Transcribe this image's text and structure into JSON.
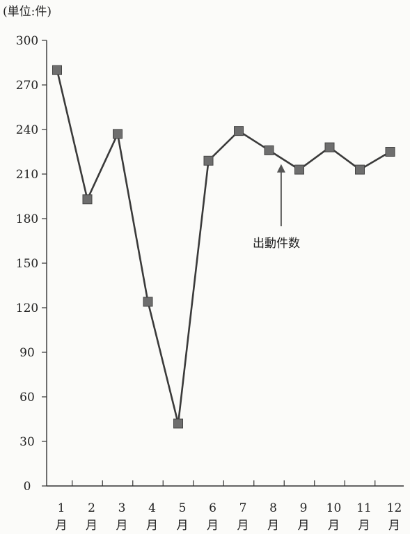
{
  "chart_data": {
    "type": "line",
    "unit_label": "(単位:件)",
    "y_ticks": [
      "0",
      "30",
      "60",
      "90",
      "120",
      "150",
      "180",
      "210",
      "240",
      "270",
      "300"
    ],
    "ylim": [
      0,
      300
    ],
    "categories": [
      {
        "num": "1",
        "suffix": "月"
      },
      {
        "num": "2",
        "suffix": "月"
      },
      {
        "num": "3",
        "suffix": "月"
      },
      {
        "num": "4",
        "suffix": "月"
      },
      {
        "num": "5",
        "suffix": "月"
      },
      {
        "num": "6",
        "suffix": "月"
      },
      {
        "num": "7",
        "suffix": "月"
      },
      {
        "num": "8",
        "suffix": "月"
      },
      {
        "num": "9",
        "suffix": "月"
      },
      {
        "num": "10",
        "suffix": "月"
      },
      {
        "num": "11",
        "suffix": "月"
      },
      {
        "num": "12",
        "suffix": "月"
      }
    ],
    "series": [
      {
        "values": [
          280,
          193,
          237,
          124,
          42,
          219,
          239,
          226,
          213,
          228,
          213,
          225
        ]
      }
    ],
    "annotation": {
      "text": "出動件数",
      "points_to_index": 7
    },
    "grid": false,
    "colors": {
      "line": "#3a3a3a",
      "marker": "#6e6e6e",
      "axis": "#333333"
    }
  }
}
